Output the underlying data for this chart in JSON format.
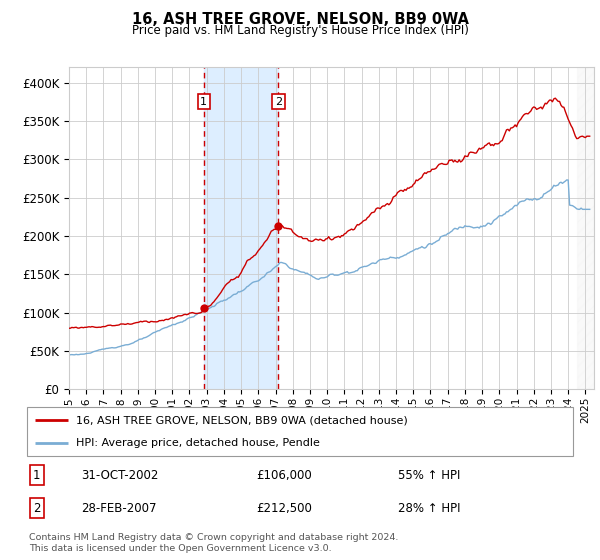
{
  "title": "16, ASH TREE GROVE, NELSON, BB9 0WA",
  "subtitle": "Price paid vs. HM Land Registry's House Price Index (HPI)",
  "xlim": [
    1995.0,
    2025.5
  ],
  "ylim": [
    0,
    420000
  ],
  "yticks": [
    0,
    50000,
    100000,
    150000,
    200000,
    250000,
    300000,
    350000,
    400000
  ],
  "ytick_labels": [
    "£0",
    "£50K",
    "£100K",
    "£150K",
    "£200K",
    "£250K",
    "£300K",
    "£350K",
    "£400K"
  ],
  "sale1_date_num": 2002.83,
  "sale1_price": 106000,
  "sale1_label": "1",
  "sale1_date_str": "31-OCT-2002",
  "sale1_price_str": "£106,000",
  "sale1_hpi_str": "55% ↑ HPI",
  "sale2_date_num": 2007.16,
  "sale2_price": 212500,
  "sale2_label": "2",
  "sale2_date_str": "28-FEB-2007",
  "sale2_price_str": "£212,500",
  "sale2_hpi_str": "28% ↑ HPI",
  "line1_color": "#cc0000",
  "line2_color": "#7aadd4",
  "legend1_label": "16, ASH TREE GROVE, NELSON, BB9 0WA (detached house)",
  "legend2_label": "HPI: Average price, detached house, Pendle",
  "footnote": "Contains HM Land Registry data © Crown copyright and database right 2024.\nThis data is licensed under the Open Government Licence v3.0.",
  "grid_color": "#cccccc",
  "bg_color": "#ffffff",
  "highlight_color": "#ddeeff"
}
